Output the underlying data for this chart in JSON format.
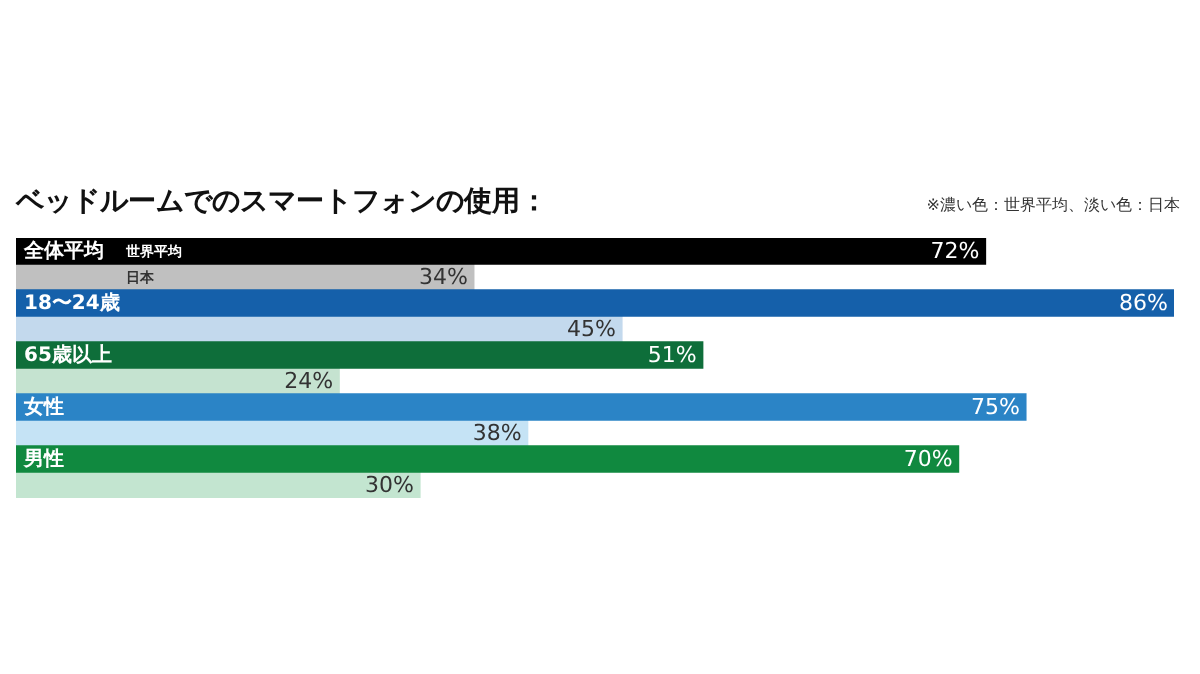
{
  "chart_data": {
    "type": "bar",
    "orientation": "horizontal",
    "title": "ベッドルームでのスマートフォンの使用：",
    "annotations": [
      "※濃い色：世界平均、淡い色：日本"
    ],
    "categories": [
      "全体平均",
      "18〜24歳",
      "65歳以上",
      "女性",
      "男性"
    ],
    "tick_labels": false,
    "series": [
      {
        "name": "世界平均",
        "colors": [
          "#000000",
          "#1560aa",
          "#0e6e3a",
          "#2b84c6",
          "#10893f"
        ],
        "values": [
          72,
          86,
          51,
          75,
          70
        ],
        "value_labels": [
          "72%",
          "86%",
          "51%",
          "75%",
          "70%"
        ]
      },
      {
        "name": "日本",
        "colors": [
          "#c0c0c0",
          "#c3d9ed",
          "#c5e3d0",
          "#c5e3f5",
          "#c3e5d0"
        ],
        "values": [
          34,
          45,
          24,
          38,
          30
        ],
        "value_labels": [
          "34%",
          "45%",
          "24%",
          "38%",
          "30%"
        ]
      }
    ]
  }
}
